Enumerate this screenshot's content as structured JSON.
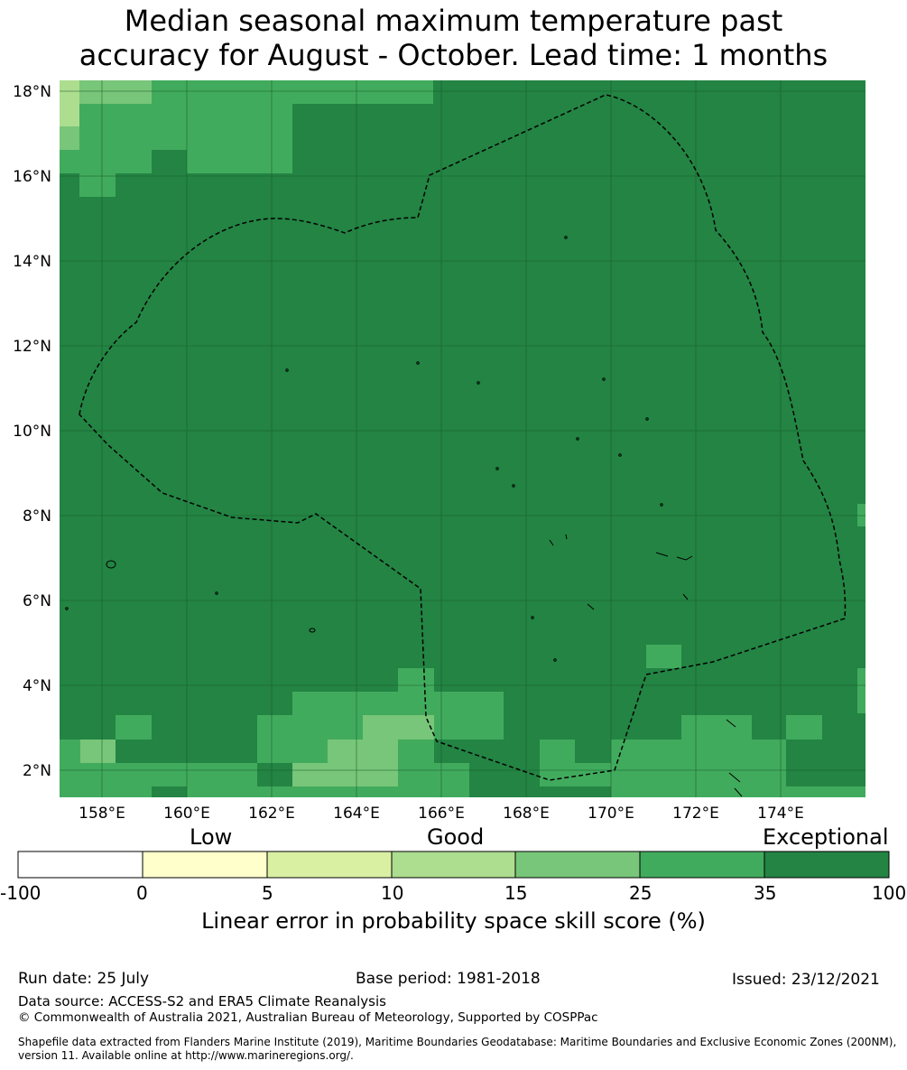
{
  "title_line1": "Median seasonal maximum temperature past",
  "title_line2": "accuracy for August - October. Lead time: 1 months",
  "map": {
    "lat_labels": [
      "18°N",
      "16°N",
      "14°N",
      "12°N",
      "10°N",
      "8°N",
      "6°N",
      "4°N",
      "2°N"
    ],
    "lon_labels": [
      "158°E",
      "160°E",
      "162°E",
      "164°E",
      "166°E",
      "168°E",
      "170°E",
      "172°E",
      "174°E"
    ],
    "background_color": "#238443",
    "boundary_style": "dashed EEZ outline, black"
  },
  "colorbar": {
    "heading_low": "Low",
    "heading_good": "Good",
    "heading_exceptional": "Exceptional",
    "ticks": [
      "-100",
      "0",
      "5",
      "10",
      "15",
      "25",
      "35",
      "100"
    ],
    "colors": [
      "#ffffff",
      "#ffffcc",
      "#d9f0a3",
      "#addd8e",
      "#78c679",
      "#41ab5d",
      "#238443"
    ],
    "label": "Linear error in probability space skill score (%)"
  },
  "footer": {
    "run_date": "Run date: 25 July",
    "base_period": "Base period: 1981-2018",
    "issued": "Issued: 23/12/2021",
    "data_source": "Data source: ACCESS-S2 and ERA5 Climate Reanalysis",
    "copyright": "© Commonwealth of Australia 2021, Australian Bureau of Meteorology, Supported by COSPPac",
    "shapefile_line1": "Shapefile data extracted from Flanders Marine Institute (2019), Maritime Boundaries Geodatabase: Maritime Boundaries and Exclusive Economic Zones (200NM),",
    "shapefile_line2": "version 11. Available online at http://www.marineregions.org/."
  }
}
